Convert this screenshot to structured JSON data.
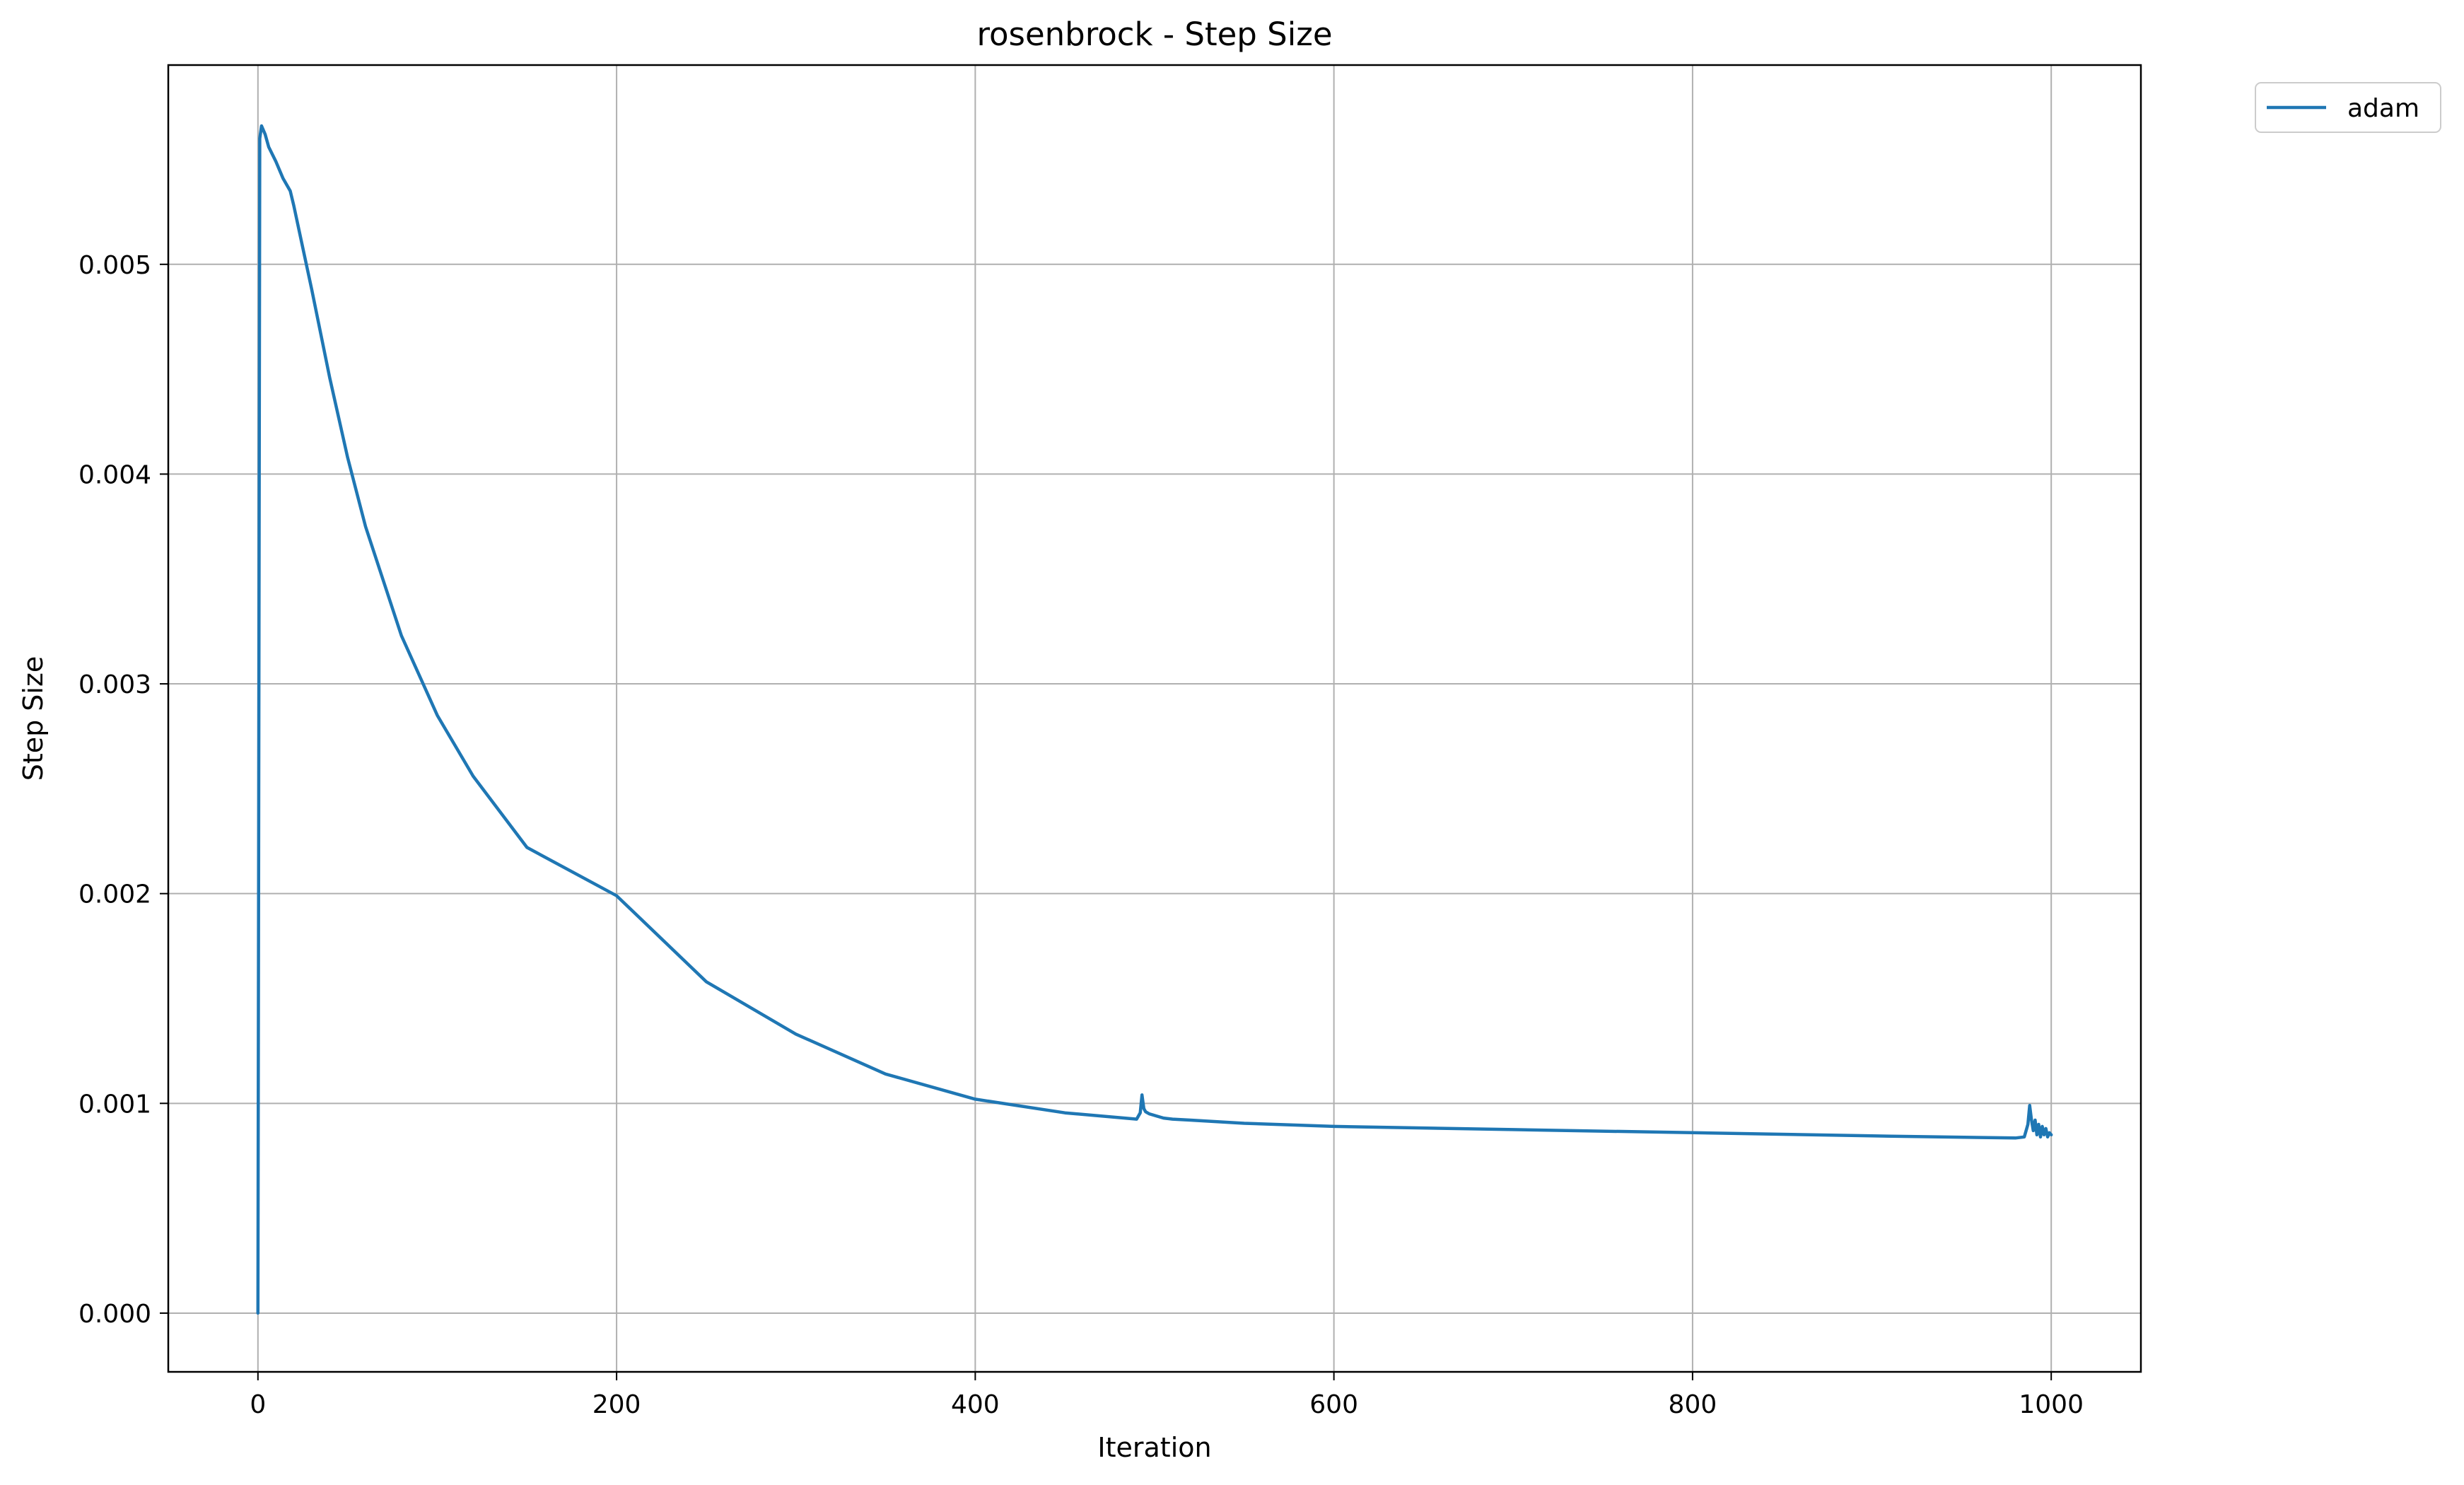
{
  "chart_data": {
    "type": "line",
    "title": "rosenbrock - Step Size",
    "xlabel": "Iteration",
    "ylabel": "Step Size",
    "xlim": [
      -50,
      1050
    ],
    "ylim": [
      -0.00028,
      0.00595
    ],
    "xticks": [
      0,
      200,
      400,
      600,
      800,
      1000
    ],
    "xtick_labels": [
      "0",
      "200",
      "400",
      "600",
      "800",
      "1000"
    ],
    "yticks": [
      0.0,
      0.001,
      0.002,
      0.003,
      0.004,
      0.005
    ],
    "ytick_labels": [
      "0.000",
      "0.001",
      "0.002",
      "0.003",
      "0.004",
      "0.005"
    ],
    "grid": true,
    "legend_position": "outside-top-right",
    "series": [
      {
        "name": "adam",
        "color": "#1f77b4",
        "x": [
          0,
          1,
          2,
          4,
          6,
          10,
          14,
          16,
          18,
          20,
          25,
          30,
          40,
          50,
          60,
          80,
          100,
          120,
          150,
          200,
          250,
          300,
          350,
          400,
          450,
          490,
          492,
          493,
          494,
          495,
          497,
          499,
          501,
          503,
          505,
          510,
          520,
          550,
          600,
          700,
          800,
          900,
          980,
          985,
          987,
          988,
          989,
          990,
          991,
          992,
          993,
          994,
          995,
          996,
          997,
          998,
          999,
          1000
        ],
        "y": [
          0.0,
          0.0056,
          0.00566,
          0.00562,
          0.00556,
          0.00549,
          0.00541,
          0.00538,
          0.00535,
          0.00528,
          0.00508,
          0.00488,
          0.00446,
          0.00408,
          0.00375,
          0.00323,
          0.00285,
          0.00256,
          0.00222,
          0.00199,
          0.00158,
          0.00133,
          0.00114,
          0.00102,
          0.000955,
          0.000925,
          0.000955,
          0.00104,
          0.000975,
          0.00096,
          0.00095,
          0.000945,
          0.00094,
          0.000935,
          0.00093,
          0.000925,
          0.00092,
          0.000905,
          0.00089,
          0.000875,
          0.00086,
          0.000845,
          0.000835,
          0.00084,
          0.0009,
          0.00099,
          0.00092,
          0.00087,
          0.00092,
          0.00085,
          0.0009,
          0.00084,
          0.00089,
          0.00085,
          0.00088,
          0.00084,
          0.00086,
          0.00085
        ]
      }
    ]
  }
}
